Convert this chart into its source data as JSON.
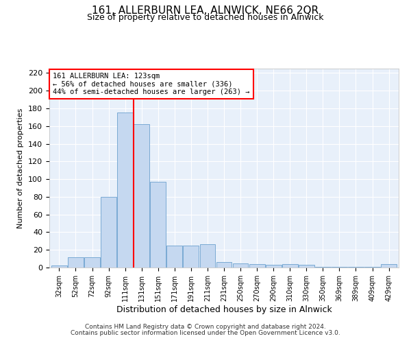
{
  "title": "161, ALLERBURN LEA, ALNWICK, NE66 2QR",
  "subtitle": "Size of property relative to detached houses in Alnwick",
  "xlabel": "Distribution of detached houses by size in Alnwick",
  "ylabel": "Number of detached properties",
  "categories": [
    "32sqm",
    "52sqm",
    "72sqm",
    "92sqm",
    "111sqm",
    "131sqm",
    "151sqm",
    "171sqm",
    "191sqm",
    "211sqm",
    "231sqm",
    "250sqm",
    "270sqm",
    "290sqm",
    "310sqm",
    "330sqm",
    "350sqm",
    "369sqm",
    "389sqm",
    "409sqm",
    "429sqm"
  ],
  "values": [
    2,
    12,
    12,
    80,
    175,
    162,
    97,
    25,
    25,
    26,
    6,
    5,
    4,
    3,
    4,
    3,
    1,
    1,
    1,
    1,
    4
  ],
  "bar_color": "#c5d8f0",
  "bar_edge_color": "#7aaad4",
  "vline_x_index": 4.5,
  "annotation_text": "161 ALLERBURN LEA: 123sqm\n← 56% of detached houses are smaller (336)\n44% of semi-detached houses are larger (263) →",
  "annotation_box_color": "white",
  "annotation_box_edge_color": "red",
  "vline_color": "red",
  "ylim": [
    0,
    225
  ],
  "yticks": [
    0,
    20,
    40,
    60,
    80,
    100,
    120,
    140,
    160,
    180,
    200,
    220
  ],
  "background_color": "#e8f0fa",
  "grid_color": "white",
  "footer_line1": "Contains HM Land Registry data © Crown copyright and database right 2024.",
  "footer_line2": "Contains public sector information licensed under the Open Government Licence v3.0."
}
